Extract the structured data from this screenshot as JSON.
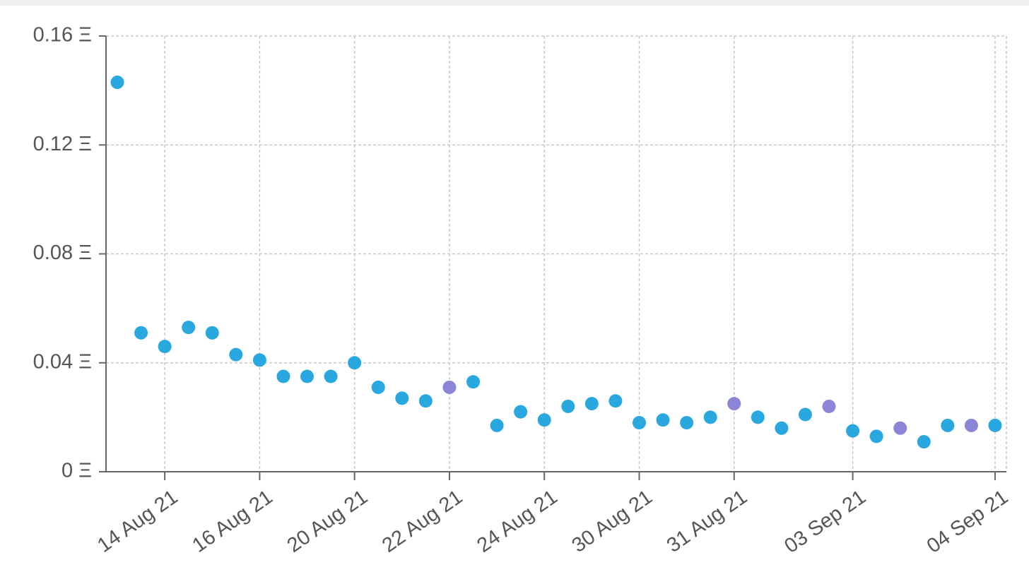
{
  "chart_data": {
    "type": "scatter",
    "categories": [
      null,
      null,
      "14 Aug 21",
      null,
      null,
      null,
      "16 Aug 21",
      null,
      null,
      null,
      "20 Aug 21",
      null,
      null,
      null,
      "22 Aug 21",
      null,
      null,
      null,
      "24 Aug 21",
      null,
      null,
      null,
      "30 Aug 21",
      null,
      null,
      null,
      "31 Aug 21",
      null,
      null,
      null,
      null,
      "03 Sep 21",
      null,
      null,
      null,
      null,
      null,
      "04 Sep 21"
    ],
    "values": [
      0.143,
      0.051,
      0.046,
      0.053,
      0.051,
      0.043,
      0.041,
      0.035,
      0.035,
      0.035,
      0.04,
      0.031,
      0.027,
      0.026,
      0.031,
      0.033,
      0.017,
      0.022,
      0.019,
      0.024,
      0.025,
      0.026,
      0.018,
      0.019,
      0.018,
      0.02,
      0.025,
      0.02,
      0.016,
      0.021,
      0.024,
      0.015,
      0.013,
      0.016,
      0.011,
      0.017,
      0.017,
      0.017
    ],
    "colors": [
      "#29a8e0",
      "#29a8e0",
      "#29a8e0",
      "#29a8e0",
      "#29a8e0",
      "#29a8e0",
      "#29a8e0",
      "#29a8e0",
      "#29a8e0",
      "#29a8e0",
      "#29a8e0",
      "#29a8e0",
      "#29a8e0",
      "#29a8e0",
      "#8a85d6",
      "#29a8e0",
      "#29a8e0",
      "#29a8e0",
      "#29a8e0",
      "#29a8e0",
      "#29a8e0",
      "#29a8e0",
      "#29a8e0",
      "#29a8e0",
      "#29a8e0",
      "#29a8e0",
      "#8a85d6",
      "#29a8e0",
      "#29a8e0",
      "#29a8e0",
      "#8a85d6",
      "#29a8e0",
      "#29a8e0",
      "#8a85d6",
      "#29a8e0",
      "#29a8e0",
      "#8a85d6",
      "#29a8e0"
    ],
    "ylim": [
      0,
      0.16
    ],
    "yticks": [
      {
        "value": 0,
        "label": "0 Ξ"
      },
      {
        "value": 0.04,
        "label": "0.04 Ξ"
      },
      {
        "value": 0.08,
        "label": "0.08 Ξ"
      },
      {
        "value": 0.12,
        "label": "0.12 Ξ"
      },
      {
        "value": 0.16,
        "label": "0.16 Ξ"
      }
    ],
    "grid": true
  }
}
